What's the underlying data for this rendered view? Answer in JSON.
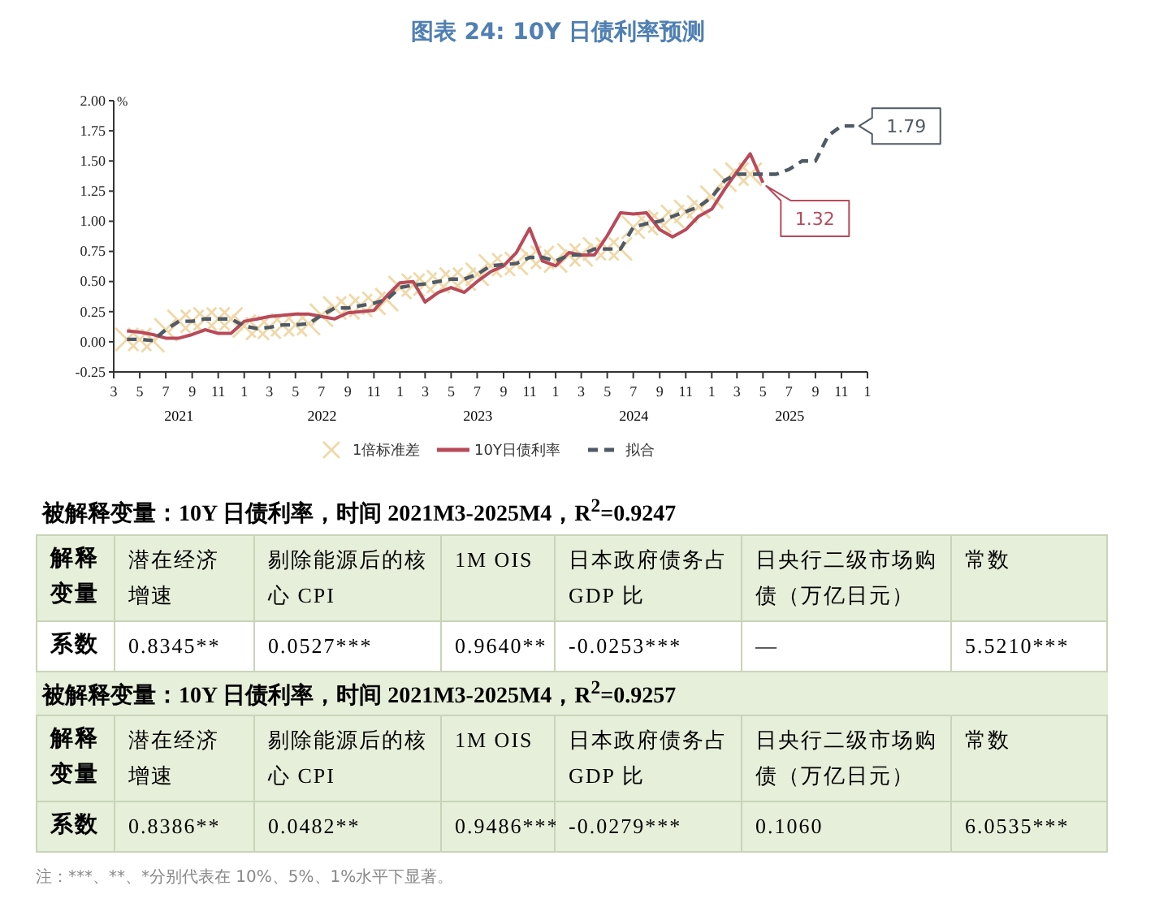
{
  "chart_data": {
    "type": "line",
    "title": "图表 24: 10Y 日债利率预测",
    "ylabel": "%",
    "xlim": [
      "2021-03",
      "2026-01"
    ],
    "xticks": [
      {
        "value": "2021-03",
        "label": "3"
      },
      {
        "value": "2021-05",
        "label": "5"
      },
      {
        "value": "2021-07",
        "label": "7"
      },
      {
        "value": "2021-09",
        "label": "9"
      },
      {
        "value": "2021-11",
        "label": "11"
      },
      {
        "value": "2022-01",
        "label": "1"
      },
      {
        "value": "2022-03",
        "label": "3"
      },
      {
        "value": "2022-05",
        "label": "5"
      },
      {
        "value": "2022-07",
        "label": "7"
      },
      {
        "value": "2022-09",
        "label": "9"
      },
      {
        "value": "2022-11",
        "label": "11"
      },
      {
        "value": "2023-01",
        "label": "1"
      },
      {
        "value": "2023-03",
        "label": "3"
      },
      {
        "value": "2023-05",
        "label": "5"
      },
      {
        "value": "2023-07",
        "label": "7"
      },
      {
        "value": "2023-09",
        "label": "9"
      },
      {
        "value": "2023-11",
        "label": "11"
      },
      {
        "value": "2024-01",
        "label": "1"
      },
      {
        "value": "2024-03",
        "label": "3"
      },
      {
        "value": "2024-05",
        "label": "5"
      },
      {
        "value": "2024-07",
        "label": "7"
      },
      {
        "value": "2024-09",
        "label": "9"
      },
      {
        "value": "2024-11",
        "label": "11"
      },
      {
        "value": "2025-01",
        "label": "1"
      },
      {
        "value": "2025-03",
        "label": "3"
      },
      {
        "value": "2025-05",
        "label": "5"
      },
      {
        "value": "2025-07",
        "label": "7"
      },
      {
        "value": "2025-09",
        "label": "9"
      },
      {
        "value": "2025-11",
        "label": "11"
      },
      {
        "value": "2026-01",
        "label": "1"
      }
    ],
    "ylim": [
      -0.25,
      2.0
    ],
    "yticks": [
      {
        "value": -0.25,
        "label": "-0.25"
      },
      {
        "value": 0,
        "label": "0.00"
      },
      {
        "value": 0.25,
        "label": "0.25"
      },
      {
        "value": 0.5,
        "label": "0.50"
      },
      {
        "value": 0.75,
        "label": "0.75"
      },
      {
        "value": 1,
        "label": "1.00"
      },
      {
        "value": 1.25,
        "label": "1.25"
      },
      {
        "value": 1.5,
        "label": "1.50"
      },
      {
        "value": 1.75,
        "label": "1.75"
      },
      {
        "value": 2,
        "label": "2.00"
      }
    ],
    "grid": false,
    "legend": "bottom",
    "series": [
      {
        "name": "1倍标准差",
        "type": "scatter",
        "marker": "cross",
        "color": "#f0d8a8",
        "x": [
          "2021-04",
          "2021-05",
          "2021-06",
          "2021-07",
          "2021-08",
          "2021-09",
          "2021-10",
          "2021-11",
          "2021-12",
          "2022-01",
          "2022-02",
          "2022-03",
          "2022-04",
          "2022-05",
          "2022-06",
          "2022-07",
          "2022-08",
          "2022-09",
          "2022-10",
          "2022-11",
          "2022-12",
          "2023-01",
          "2023-02",
          "2023-03",
          "2023-04",
          "2023-05",
          "2023-06",
          "2023-07",
          "2023-08",
          "2023-09",
          "2023-10",
          "2023-11",
          "2023-12",
          "2024-01",
          "2024-02",
          "2024-03",
          "2024-04",
          "2024-05",
          "2024-06",
          "2024-07",
          "2024-08",
          "2024-09",
          "2024-10",
          "2024-11",
          "2024-12",
          "2025-01",
          "2025-02",
          "2025-03",
          "2025-04"
        ],
        "values": [
          0.02,
          0.02,
          0.01,
          0.1,
          0.17,
          0.17,
          0.19,
          0.19,
          0.19,
          0.13,
          0.11,
          0.12,
          0.14,
          0.14,
          0.15,
          0.22,
          0.28,
          0.28,
          0.3,
          0.32,
          0.35,
          0.45,
          0.47,
          0.48,
          0.5,
          0.52,
          0.52,
          0.56,
          0.63,
          0.64,
          0.65,
          0.7,
          0.7,
          0.67,
          0.72,
          0.72,
          0.77,
          0.77,
          0.77,
          0.95,
          0.98,
          1.0,
          1.04,
          1.08,
          1.12,
          1.2,
          1.34,
          1.39,
          1.39
        ]
      },
      {
        "name": "10Y日债利率",
        "color": "#b84a5a",
        "line_style": "solid",
        "x": [
          "2021-04",
          "2021-05",
          "2021-06",
          "2021-07",
          "2021-08",
          "2021-09",
          "2021-10",
          "2021-11",
          "2021-12",
          "2022-01",
          "2022-02",
          "2022-03",
          "2022-04",
          "2022-05",
          "2022-06",
          "2022-07",
          "2022-08",
          "2022-09",
          "2022-10",
          "2022-11",
          "2022-12",
          "2023-01",
          "2023-02",
          "2023-03",
          "2023-04",
          "2023-05",
          "2023-06",
          "2023-07",
          "2023-08",
          "2023-09",
          "2023-10",
          "2023-11",
          "2023-12",
          "2024-01",
          "2024-02",
          "2024-03",
          "2024-04",
          "2024-05",
          "2024-06",
          "2024-07",
          "2024-08",
          "2024-09",
          "2024-10",
          "2024-11",
          "2024-12",
          "2025-01",
          "2025-02",
          "2025-03",
          "2025-04",
          "2025-05"
        ],
        "values": [
          0.09,
          0.08,
          0.06,
          0.03,
          0.03,
          0.06,
          0.1,
          0.07,
          0.07,
          0.17,
          0.19,
          0.21,
          0.22,
          0.23,
          0.23,
          0.21,
          0.19,
          0.24,
          0.25,
          0.26,
          0.38,
          0.49,
          0.5,
          0.33,
          0.41,
          0.45,
          0.41,
          0.5,
          0.58,
          0.63,
          0.74,
          0.94,
          0.67,
          0.63,
          0.74,
          0.72,
          0.72,
          0.88,
          1.07,
          1.06,
          1.07,
          0.93,
          0.87,
          0.93,
          1.04,
          1.1,
          1.27,
          1.41,
          1.56,
          1.32
        ]
      },
      {
        "name": "拟合",
        "color": "#505a66",
        "line_style": "dashed",
        "x": [
          "2021-04",
          "2021-05",
          "2021-06",
          "2021-07",
          "2021-08",
          "2021-09",
          "2021-10",
          "2021-11",
          "2021-12",
          "2022-01",
          "2022-02",
          "2022-03",
          "2022-04",
          "2022-05",
          "2022-06",
          "2022-07",
          "2022-08",
          "2022-09",
          "2022-10",
          "2022-11",
          "2022-12",
          "2023-01",
          "2023-02",
          "2023-03",
          "2023-04",
          "2023-05",
          "2023-06",
          "2023-07",
          "2023-08",
          "2023-09",
          "2023-10",
          "2023-11",
          "2023-12",
          "2024-01",
          "2024-02",
          "2024-03",
          "2024-04",
          "2024-05",
          "2024-06",
          "2024-07",
          "2024-08",
          "2024-09",
          "2024-10",
          "2024-11",
          "2024-12",
          "2025-01",
          "2025-02",
          "2025-03",
          "2025-04",
          "2025-05",
          "2025-06",
          "2025-07",
          "2025-08",
          "2025-09",
          "2025-10",
          "2025-11",
          "2025-12"
        ],
        "values": [
          0.02,
          0.02,
          0.01,
          0.1,
          0.17,
          0.17,
          0.19,
          0.19,
          0.19,
          0.13,
          0.11,
          0.12,
          0.14,
          0.14,
          0.15,
          0.22,
          0.28,
          0.28,
          0.3,
          0.32,
          0.35,
          0.45,
          0.47,
          0.48,
          0.5,
          0.52,
          0.52,
          0.56,
          0.63,
          0.64,
          0.65,
          0.7,
          0.7,
          0.67,
          0.72,
          0.72,
          0.77,
          0.77,
          0.77,
          0.95,
          0.98,
          1.0,
          1.04,
          1.08,
          1.12,
          1.2,
          1.34,
          1.39,
          1.39,
          1.39,
          1.39,
          1.43,
          1.5,
          1.5,
          1.71,
          1.79,
          1.79
        ]
      }
    ],
    "annotations": [
      "2021",
      "2022",
      "2023",
      "2024",
      "2025",
      {
        "text": "1.79",
        "x": "2025-12",
        "y": 1.79
      },
      {
        "text": "1.32",
        "x": "2025-05",
        "y": 1.32
      },
      "被解释变量：10Y 日债利率，时间 2021M3-2025M4，R$^{2}$=0.9247",
      "解释变量",
      "潜在经济增速",
      "剔除能源后的核心 CPI",
      "1M OIS",
      "日本政府债务占 GDP 比",
      "日央行二级市场购债（万亿日元）",
      "常数",
      "系数",
      "0.8345**",
      "0.0527***",
      "0.9640**",
      "-0.0253***",
      "—",
      "5.5210***",
      "被解释变量：10Y 日债利率，时间 2021M3-2025M4，R$^{2}$=0.9257",
      "解释变量",
      "潜在经济增速",
      "剔除能源后的核心 CPI",
      "1M OIS",
      "日本政府债务占 GDP 比",
      "日央行二级市场购债（万亿日元）",
      "常数",
      "系数",
      "0.8386**",
      "0.0482**",
      "0.9486***",
      "-0.0279***",
      "0.1060",
      "6.0535***",
      "注：***、**、*分别代表在 10%、5%、1%水平下显著。"
    ]
  }
}
